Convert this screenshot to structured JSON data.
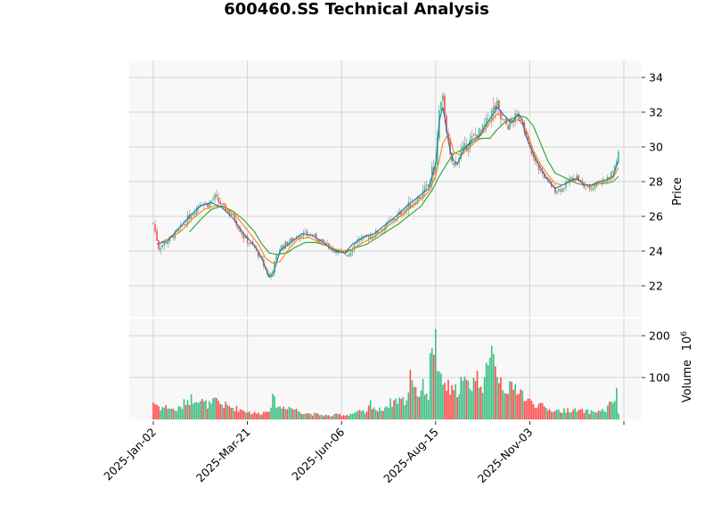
{
  "chart_data": {
    "type": "candlestick",
    "title": "600460.SS Technical Analysis",
    "xlabel": "",
    "panels": [
      {
        "name": "price",
        "ylabel": "Price",
        "ylim": [
          20.8,
          34.9
        ],
        "yticks": [
          22,
          24,
          26,
          28,
          30,
          32,
          34
        ],
        "grid": true
      },
      {
        "name": "volume",
        "ylabel": "Volume",
        "ylabel_exponent": "10^6",
        "ylim": [
          0,
          220
        ],
        "yticks": [
          100,
          200
        ],
        "grid": true
      }
    ],
    "xticks": [
      "2025-Jan-02",
      "2025-Mar-21",
      "2025-Jun-06",
      "2025-Aug-15",
      "2025-Nov-03"
    ],
    "xtick_index": [
      0,
      52,
      104,
      156,
      208
    ],
    "n_bars": 258,
    "colors": {
      "up": "#26a69a",
      "up_fill": "#3dbf85",
      "down": "#ff4d4d",
      "wick": "#888888",
      "ma_short": "#1f77b4",
      "ma_mid": "#ff7f0e",
      "ma_long": "#2ca02c",
      "panel_bg": "#f8f8f8",
      "grid": "#d3d3d3"
    },
    "legend": [],
    "moving_averages": [
      "MA short (blue)",
      "MA mid (orange)",
      "MA long (green)"
    ],
    "price_keypoints": [
      [
        0,
        25.6
      ],
      [
        3,
        24.2
      ],
      [
        8,
        24.6
      ],
      [
        14,
        25.2
      ],
      [
        20,
        26.0
      ],
      [
        26,
        26.8
      ],
      [
        30,
        26.7
      ],
      [
        34,
        27.1
      ],
      [
        38,
        26.6
      ],
      [
        44,
        26.0
      ],
      [
        50,
        24.8
      ],
      [
        56,
        24.2
      ],
      [
        60,
        23.4
      ],
      [
        64,
        22.5
      ],
      [
        66,
        23.0
      ],
      [
        70,
        24.2
      ],
      [
        76,
        24.6
      ],
      [
        82,
        25.0
      ],
      [
        88,
        24.9
      ],
      [
        94,
        24.5
      ],
      [
        98,
        24.2
      ],
      [
        104,
        23.9
      ],
      [
        108,
        23.8
      ],
      [
        112,
        24.6
      ],
      [
        118,
        24.8
      ],
      [
        124,
        25.1
      ],
      [
        130,
        25.6
      ],
      [
        136,
        26.1
      ],
      [
        142,
        26.7
      ],
      [
        148,
        27.2
      ],
      [
        152,
        27.8
      ],
      [
        156,
        29.0
      ],
      [
        158,
        32.0
      ],
      [
        160,
        32.8
      ],
      [
        162,
        31.0
      ],
      [
        164,
        29.4
      ],
      [
        166,
        28.9
      ],
      [
        168,
        29.3
      ],
      [
        170,
        29.7
      ],
      [
        174,
        30.2
      ],
      [
        178,
        30.7
      ],
      [
        182,
        31.0
      ],
      [
        186,
        31.8
      ],
      [
        190,
        32.4
      ],
      [
        192,
        31.6
      ],
      [
        196,
        31.2
      ],
      [
        200,
        31.7
      ],
      [
        204,
        31.6
      ],
      [
        206,
        30.5
      ],
      [
        210,
        29.3
      ],
      [
        214,
        28.6
      ],
      [
        218,
        28.0
      ],
      [
        222,
        27.5
      ],
      [
        226,
        27.6
      ],
      [
        230,
        28.1
      ],
      [
        234,
        28.3
      ],
      [
        238,
        27.7
      ],
      [
        242,
        27.6
      ],
      [
        246,
        28.0
      ],
      [
        250,
        28.1
      ],
      [
        254,
        28.6
      ],
      [
        257,
        29.6
      ]
    ],
    "ma_short_keypoints": [
      [
        2,
        24.4
      ],
      [
        8,
        24.6
      ],
      [
        14,
        25.3
      ],
      [
        20,
        26.0
      ],
      [
        26,
        26.6
      ],
      [
        32,
        26.8
      ],
      [
        38,
        26.5
      ],
      [
        44,
        25.9
      ],
      [
        50,
        25.0
      ],
      [
        56,
        24.3
      ],
      [
        60,
        23.6
      ],
      [
        64,
        22.5
      ],
      [
        66,
        22.6
      ],
      [
        70,
        24.0
      ],
      [
        76,
        24.5
      ],
      [
        82,
        25.0
      ],
      [
        88,
        24.9
      ],
      [
        94,
        24.5
      ],
      [
        100,
        24.0
      ],
      [
        106,
        23.9
      ],
      [
        110,
        24.4
      ],
      [
        116,
        24.8
      ],
      [
        122,
        25.0
      ],
      [
        128,
        25.5
      ],
      [
        134,
        26.0
      ],
      [
        140,
        26.6
      ],
      [
        146,
        27.1
      ],
      [
        152,
        27.6
      ],
      [
        156,
        29.0
      ],
      [
        158,
        31.5
      ],
      [
        160,
        32.3
      ],
      [
        162,
        31.0
      ],
      [
        164,
        29.8
      ],
      [
        166,
        29.2
      ],
      [
        168,
        29.0
      ],
      [
        172,
        29.9
      ],
      [
        176,
        30.4
      ],
      [
        180,
        30.6
      ],
      [
        184,
        31.3
      ],
      [
        188,
        31.9
      ],
      [
        190,
        32.3
      ],
      [
        194,
        31.8
      ],
      [
        198,
        31.4
      ],
      [
        202,
        31.9
      ],
      [
        204,
        31.5
      ],
      [
        206,
        30.6
      ],
      [
        210,
        29.6
      ],
      [
        214,
        28.8
      ],
      [
        218,
        28.1
      ],
      [
        222,
        27.6
      ],
      [
        226,
        27.8
      ],
      [
        230,
        28.0
      ],
      [
        234,
        28.2
      ],
      [
        238,
        27.8
      ],
      [
        242,
        27.8
      ],
      [
        246,
        28.0
      ],
      [
        250,
        28.1
      ],
      [
        254,
        28.3
      ],
      [
        257,
        29.2
      ]
    ],
    "ma_mid_keypoints": [
      [
        4,
        24.5
      ],
      [
        10,
        24.8
      ],
      [
        16,
        25.2
      ],
      [
        22,
        25.9
      ],
      [
        28,
        26.4
      ],
      [
        34,
        26.6
      ],
      [
        40,
        26.5
      ],
      [
        46,
        26.0
      ],
      [
        52,
        25.2
      ],
      [
        58,
        24.4
      ],
      [
        62,
        23.6
      ],
      [
        66,
        23.3
      ],
      [
        70,
        23.4
      ],
      [
        74,
        24.0
      ],
      [
        80,
        24.7
      ],
      [
        86,
        24.8
      ],
      [
        92,
        24.5
      ],
      [
        98,
        24.2
      ],
      [
        104,
        24.0
      ],
      [
        110,
        24.1
      ],
      [
        116,
        24.5
      ],
      [
        122,
        24.8
      ],
      [
        128,
        25.3
      ],
      [
        134,
        25.8
      ],
      [
        140,
        26.3
      ],
      [
        146,
        26.8
      ],
      [
        152,
        27.4
      ],
      [
        156,
        28.3
      ],
      [
        160,
        30.2
      ],
      [
        162,
        30.6
      ],
      [
        164,
        30.5
      ],
      [
        166,
        29.7
      ],
      [
        170,
        29.5
      ],
      [
        174,
        29.9
      ],
      [
        178,
        30.3
      ],
      [
        182,
        30.8
      ],
      [
        186,
        31.4
      ],
      [
        190,
        31.9
      ],
      [
        194,
        31.8
      ],
      [
        198,
        31.4
      ],
      [
        202,
        31.6
      ],
      [
        206,
        31.0
      ],
      [
        210,
        29.8
      ],
      [
        214,
        29.0
      ],
      [
        218,
        28.4
      ],
      [
        222,
        27.9
      ],
      [
        226,
        27.8
      ],
      [
        230,
        28.0
      ],
      [
        234,
        28.1
      ],
      [
        238,
        27.9
      ],
      [
        242,
        27.7
      ],
      [
        246,
        27.9
      ],
      [
        250,
        28.0
      ],
      [
        254,
        28.2
      ],
      [
        257,
        28.8
      ]
    ],
    "ma_long_keypoints": [
      [
        20,
        25.1
      ],
      [
        26,
        25.8
      ],
      [
        32,
        26.4
      ],
      [
        38,
        26.6
      ],
      [
        44,
        26.3
      ],
      [
        50,
        25.8
      ],
      [
        56,
        25.1
      ],
      [
        60,
        24.4
      ],
      [
        64,
        23.9
      ],
      [
        68,
        23.8
      ],
      [
        74,
        23.9
      ],
      [
        78,
        24.2
      ],
      [
        84,
        24.5
      ],
      [
        90,
        24.5
      ],
      [
        96,
        24.3
      ],
      [
        102,
        24.0
      ],
      [
        106,
        23.9
      ],
      [
        112,
        24.2
      ],
      [
        118,
        24.4
      ],
      [
        124,
        24.8
      ],
      [
        130,
        25.2
      ],
      [
        136,
        25.6
      ],
      [
        142,
        26.1
      ],
      [
        148,
        26.6
      ],
      [
        154,
        27.5
      ],
      [
        158,
        28.3
      ],
      [
        162,
        29.0
      ],
      [
        166,
        29.6
      ],
      [
        170,
        29.8
      ],
      [
        174,
        30.1
      ],
      [
        178,
        30.4
      ],
      [
        182,
        30.5
      ],
      [
        186,
        30.5
      ],
      [
        190,
        31.0
      ],
      [
        194,
        31.4
      ],
      [
        198,
        31.6
      ],
      [
        202,
        31.8
      ],
      [
        206,
        31.7
      ],
      [
        210,
        31.2
      ],
      [
        214,
        30.2
      ],
      [
        218,
        29.2
      ],
      [
        222,
        28.5
      ],
      [
        226,
        28.3
      ],
      [
        230,
        28.1
      ],
      [
        234,
        27.9
      ],
      [
        238,
        27.8
      ],
      [
        242,
        27.8
      ],
      [
        246,
        27.9
      ],
      [
        250,
        27.9
      ],
      [
        254,
        28.0
      ],
      [
        257,
        28.3
      ]
    ],
    "volume_keypoints": [
      [
        0,
        42
      ],
      [
        4,
        28
      ],
      [
        8,
        30
      ],
      [
        12,
        22
      ],
      [
        16,
        30
      ],
      [
        18,
        46
      ],
      [
        22,
        50
      ],
      [
        24,
        55
      ],
      [
        28,
        38
      ],
      [
        32,
        34
      ],
      [
        34,
        45
      ],
      [
        38,
        36
      ],
      [
        42,
        30
      ],
      [
        46,
        26
      ],
      [
        50,
        22
      ],
      [
        54,
        16
      ],
      [
        58,
        14
      ],
      [
        62,
        18
      ],
      [
        64,
        26
      ],
      [
        66,
        48
      ],
      [
        70,
        28
      ],
      [
        74,
        32
      ],
      [
        78,
        24
      ],
      [
        82,
        18
      ],
      [
        86,
        14
      ],
      [
        90,
        12
      ],
      [
        94,
        10
      ],
      [
        98,
        8
      ],
      [
        102,
        12
      ],
      [
        106,
        10
      ],
      [
        110,
        14
      ],
      [
        114,
        18
      ],
      [
        118,
        16
      ],
      [
        120,
        40
      ],
      [
        124,
        20
      ],
      [
        128,
        30
      ],
      [
        132,
        42
      ],
      [
        136,
        50
      ],
      [
        140,
        40
      ],
      [
        142,
        120
      ],
      [
        146,
        60
      ],
      [
        150,
        80
      ],
      [
        152,
        55
      ],
      [
        154,
        200
      ],
      [
        156,
        180
      ],
      [
        158,
        90
      ],
      [
        162,
        80
      ],
      [
        166,
        60
      ],
      [
        170,
        90
      ],
      [
        174,
        80
      ],
      [
        178,
        100
      ],
      [
        182,
        90
      ],
      [
        186,
        120
      ],
      [
        188,
        200
      ],
      [
        190,
        110
      ],
      [
        194,
        80
      ],
      [
        198,
        70
      ],
      [
        202,
        80
      ],
      [
        206,
        45
      ],
      [
        210,
        40
      ],
      [
        214,
        32
      ],
      [
        218,
        24
      ],
      [
        222,
        22
      ],
      [
        226,
        20
      ],
      [
        230,
        24
      ],
      [
        234,
        20
      ],
      [
        238,
        20
      ],
      [
        242,
        18
      ],
      [
        246,
        20
      ],
      [
        250,
        22
      ],
      [
        254,
        45
      ],
      [
        256,
        58
      ],
      [
        257,
        16
      ]
    ],
    "annotations": []
  }
}
